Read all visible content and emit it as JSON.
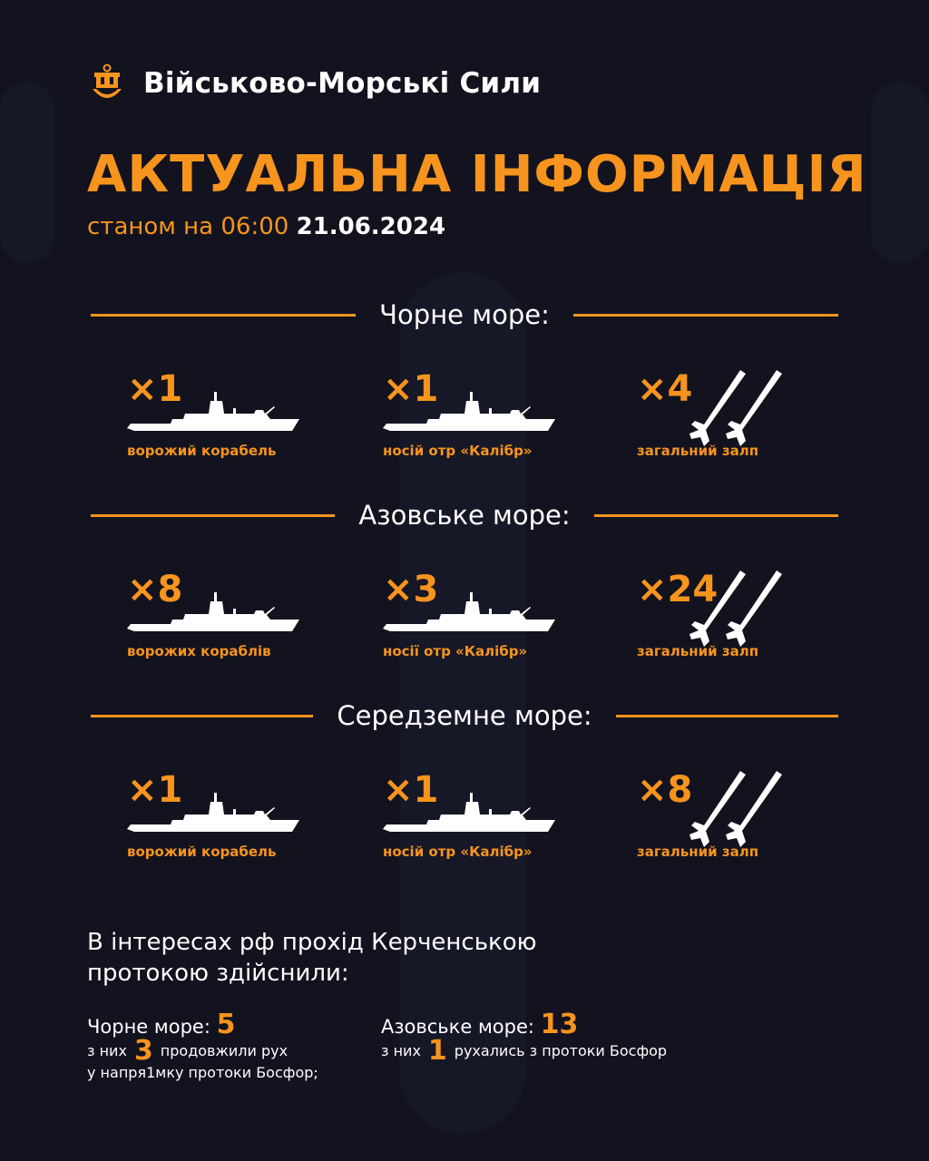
{
  "header": {
    "brand": "Військово-Морські Сили",
    "title": "АКТУАЛЬНА ІНФОРМАЦІЯ",
    "subtitle_prefix": "станом на 06:00",
    "date": "21.06.2024",
    "logo_icon": "trident-anchor-icon"
  },
  "colors": {
    "accent": "#f7941d",
    "background": "#12131f",
    "text": "#ffffff"
  },
  "sections": [
    {
      "name": "Чорне море:",
      "items": [
        {
          "count": "×1",
          "caption": "ворожий корабель",
          "icon": "ship-icon"
        },
        {
          "count": "×1",
          "caption": "носій отр «Калібр»",
          "icon": "ship-icon"
        },
        {
          "count": "×4",
          "caption": "загальний залп",
          "icon": "missiles-icon"
        }
      ]
    },
    {
      "name": "Азовське море:",
      "items": [
        {
          "count": "×8",
          "caption": "ворожих кораблів",
          "icon": "ship-icon"
        },
        {
          "count": "×3",
          "caption": "носії отр «Калібр»",
          "icon": "ship-icon"
        },
        {
          "count": "×24",
          "caption": "загальний залп",
          "icon": "missiles-icon"
        }
      ]
    },
    {
      "name": "Середземне море:",
      "items": [
        {
          "count": "×1",
          "caption": "ворожий корабель",
          "icon": "ship-icon"
        },
        {
          "count": "×1",
          "caption": "носій отр «Калібр»",
          "icon": "ship-icon"
        },
        {
          "count": "×8",
          "caption": "загальний залп",
          "icon": "missiles-icon"
        }
      ]
    }
  ],
  "transit": {
    "heading_line1": "В інтересах рф прохід Керченською",
    "heading_line2": "протокою здійснили:",
    "black_sea": {
      "label": "Чорне море:",
      "value": "5",
      "sub_prefix": "з них",
      "sub_value": "3",
      "sub_suffix": "продовжили рух",
      "sub_line2": "у напря1мку протоки Босфор;"
    },
    "azov_sea": {
      "label": "Азовське море:",
      "value": "13",
      "sub_prefix": "з них",
      "sub_value": "1",
      "sub_suffix": "рухались з протоки Босфор"
    }
  }
}
